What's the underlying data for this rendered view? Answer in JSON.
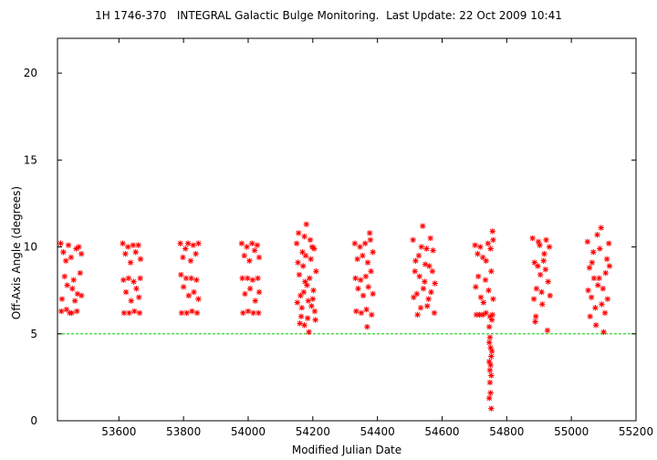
{
  "chart_data": {
    "type": "scatter",
    "title": "1H 1746-370   INTEGRAL Galactic Bulge Monitoring.  Last Update: 22 Oct 2009 10:41",
    "xlabel": "Modified Julian Date",
    "ylabel": "Off-Axis Angle (degrees)",
    "xlim": [
      53410,
      55200
    ],
    "ylim": [
      0,
      22
    ],
    "xticks": [
      53600,
      53800,
      54000,
      54200,
      54400,
      54600,
      54800,
      55000,
      55200
    ],
    "yticks": [
      0,
      5,
      10,
      15,
      20
    ],
    "grid": false,
    "marker": "asterisk",
    "marker_color": "#ff0000",
    "reference_line": {
      "y": 5,
      "style": "dashed",
      "color": "#00cc00"
    },
    "series": [
      {
        "points": [
          [
            53420,
            10.2
          ],
          [
            53428,
            9.7
          ],
          [
            53436,
            9.2
          ],
          [
            53444,
            10.1
          ],
          [
            53452,
            9.4
          ],
          [
            53460,
            8.1
          ],
          [
            53468,
            9.9
          ],
          [
            53476,
            10.0
          ],
          [
            53424,
            7.0
          ],
          [
            53432,
            8.3
          ],
          [
            53440,
            7.8
          ],
          [
            53448,
            6.2
          ],
          [
            53456,
            7.6
          ],
          [
            53464,
            6.9
          ],
          [
            53472,
            7.3
          ],
          [
            53480,
            8.5
          ],
          [
            53422,
            6.3
          ],
          [
            53438,
            6.4
          ],
          [
            53454,
            6.2
          ],
          [
            53470,
            6.3
          ],
          [
            53484,
            9.6
          ],
          [
            53484,
            7.2
          ],
          [
            53612,
            10.2
          ],
          [
            53620,
            9.6
          ],
          [
            53628,
            10.0
          ],
          [
            53636,
            9.1
          ],
          [
            53644,
            10.1
          ],
          [
            53652,
            9.7
          ],
          [
            53660,
            10.1
          ],
          [
            53667,
            9.3
          ],
          [
            53614,
            8.1
          ],
          [
            53622,
            7.4
          ],
          [
            53630,
            8.2
          ],
          [
            53638,
            6.9
          ],
          [
            53646,
            8.0
          ],
          [
            53654,
            7.6
          ],
          [
            53662,
            7.1
          ],
          [
            53666,
            8.2
          ],
          [
            53616,
            6.2
          ],
          [
            53632,
            6.2
          ],
          [
            53648,
            6.3
          ],
          [
            53664,
            6.2
          ],
          [
            53790,
            10.2
          ],
          [
            53798,
            9.4
          ],
          [
            53806,
            9.9
          ],
          [
            53814,
            10.2
          ],
          [
            53822,
            9.2
          ],
          [
            53830,
            10.1
          ],
          [
            53838,
            9.6
          ],
          [
            53846,
            10.2
          ],
          [
            53792,
            8.4
          ],
          [
            53800,
            7.7
          ],
          [
            53808,
            8.2
          ],
          [
            53816,
            7.2
          ],
          [
            53824,
            8.2
          ],
          [
            53832,
            7.4
          ],
          [
            53840,
            8.1
          ],
          [
            53846,
            7.0
          ],
          [
            53794,
            6.2
          ],
          [
            53810,
            6.2
          ],
          [
            53826,
            6.3
          ],
          [
            53842,
            6.2
          ],
          [
            53980,
            10.2
          ],
          [
            53988,
            9.5
          ],
          [
            53996,
            10.0
          ],
          [
            54004,
            9.2
          ],
          [
            54012,
            10.2
          ],
          [
            54020,
            9.8
          ],
          [
            54028,
            10.1
          ],
          [
            54034,
            9.4
          ],
          [
            53982,
            8.2
          ],
          [
            53990,
            7.3
          ],
          [
            53998,
            8.2
          ],
          [
            54006,
            7.6
          ],
          [
            54014,
            8.1
          ],
          [
            54022,
            6.9
          ],
          [
            54030,
            8.2
          ],
          [
            54034,
            7.4
          ],
          [
            53984,
            6.2
          ],
          [
            54000,
            6.3
          ],
          [
            54016,
            6.2
          ],
          [
            54032,
            6.2
          ],
          [
            54150,
            10.2
          ],
          [
            54154,
            9.1
          ],
          [
            54158,
            8.4
          ],
          [
            54162,
            7.2
          ],
          [
            54166,
            6.5
          ],
          [
            54170,
            8.9
          ],
          [
            54174,
            10.6
          ],
          [
            54178,
            9.5
          ],
          [
            54182,
            7.8
          ],
          [
            54186,
            6.9
          ],
          [
            54190,
            8.2
          ],
          [
            54194,
            9.3
          ],
          [
            54198,
            10.0
          ],
          [
            54202,
            7.5
          ],
          [
            54206,
            6.3
          ],
          [
            54210,
            8.6
          ],
          [
            54156,
            10.8
          ],
          [
            54164,
            6.0
          ],
          [
            54172,
            7.4
          ],
          [
            54180,
            11.3
          ],
          [
            54188,
            5.1
          ],
          [
            54196,
            6.6
          ],
          [
            54204,
            9.9
          ],
          [
            54160,
            5.6
          ],
          [
            54168,
            9.7
          ],
          [
            54176,
            8.0
          ],
          [
            54184,
            5.9
          ],
          [
            54192,
            10.4
          ],
          [
            54200,
            7.0
          ],
          [
            54208,
            5.8
          ],
          [
            54152,
            6.8
          ],
          [
            54174,
            5.5
          ],
          [
            54330,
            10.2
          ],
          [
            54338,
            9.3
          ],
          [
            54346,
            10.0
          ],
          [
            54354,
            9.5
          ],
          [
            54362,
            10.2
          ],
          [
            54370,
            9.1
          ],
          [
            54378,
            10.4
          ],
          [
            54386,
            9.7
          ],
          [
            54332,
            8.2
          ],
          [
            54340,
            7.6
          ],
          [
            54348,
            8.1
          ],
          [
            54356,
            7.2
          ],
          [
            54364,
            8.3
          ],
          [
            54372,
            7.7
          ],
          [
            54380,
            8.6
          ],
          [
            54386,
            7.3
          ],
          [
            54334,
            6.3
          ],
          [
            54350,
            6.2
          ],
          [
            54366,
            6.4
          ],
          [
            54382,
            6.1
          ],
          [
            54368,
            5.4
          ],
          [
            54376,
            10.8
          ],
          [
            54510,
            10.4
          ],
          [
            54516,
            8.6
          ],
          [
            54522,
            7.3
          ],
          [
            54528,
            9.5
          ],
          [
            54534,
            6.5
          ],
          [
            54540,
            11.2
          ],
          [
            54546,
            8.0
          ],
          [
            54552,
            9.9
          ],
          [
            54558,
            7.0
          ],
          [
            54564,
            10.5
          ],
          [
            54570,
            8.6
          ],
          [
            54576,
            6.2
          ],
          [
            54512,
            7.1
          ],
          [
            54518,
            9.2
          ],
          [
            54524,
            6.1
          ],
          [
            54530,
            8.3
          ],
          [
            54536,
            10.0
          ],
          [
            54542,
            7.6
          ],
          [
            54548,
            9.0
          ],
          [
            54554,
            6.6
          ],
          [
            54560,
            8.9
          ],
          [
            54566,
            7.4
          ],
          [
            54572,
            9.8
          ],
          [
            54578,
            7.9
          ],
          [
            54702,
            10.1
          ],
          [
            54710,
            9.6
          ],
          [
            54718,
            10.0
          ],
          [
            54726,
            9.4
          ],
          [
            54734,
            8.1
          ],
          [
            54742,
            10.2
          ],
          [
            54750,
            9.9
          ],
          [
            54758,
            10.4
          ],
          [
            54704,
            7.7
          ],
          [
            54712,
            8.3
          ],
          [
            54720,
            7.1
          ],
          [
            54728,
            6.8
          ],
          [
            54736,
            9.2
          ],
          [
            54744,
            7.5
          ],
          [
            54752,
            8.6
          ],
          [
            54758,
            7.0
          ],
          [
            54706,
            6.1
          ],
          [
            54716,
            6.1
          ],
          [
            54726,
            6.1
          ],
          [
            54736,
            6.2
          ],
          [
            54748,
            6.0
          ],
          [
            54756,
            6.1
          ],
          [
            54746,
            5.4
          ],
          [
            54748,
            4.8
          ],
          [
            54750,
            4.2
          ],
          [
            54752,
            3.7
          ],
          [
            54750,
            3.2
          ],
          [
            54748,
            2.9
          ],
          [
            54752,
            2.6
          ],
          [
            54746,
            4.5
          ],
          [
            54754,
            5.8
          ],
          [
            54750,
            1.6
          ],
          [
            54746,
            1.3
          ],
          [
            54752,
            0.7
          ],
          [
            54756,
            10.9
          ],
          [
            54748,
            2.2
          ],
          [
            54754,
            4.0
          ],
          [
            54746,
            3.4
          ],
          [
            54880,
            10.5
          ],
          [
            54886,
            9.1
          ],
          [
            54892,
            7.6
          ],
          [
            54898,
            10.3
          ],
          [
            54904,
            8.4
          ],
          [
            54910,
            6.7
          ],
          [
            54916,
            9.6
          ],
          [
            54922,
            10.4
          ],
          [
            54928,
            8.0
          ],
          [
            54934,
            7.2
          ],
          [
            54884,
            7.0
          ],
          [
            54890,
            6.0
          ],
          [
            54896,
            8.9
          ],
          [
            54902,
            10.1
          ],
          [
            54908,
            7.4
          ],
          [
            54914,
            9.2
          ],
          [
            54920,
            8.7
          ],
          [
            54926,
            5.2
          ],
          [
            54932,
            10.0
          ],
          [
            54888,
            5.7
          ],
          [
            55050,
            10.3
          ],
          [
            55056,
            8.8
          ],
          [
            55062,
            7.1
          ],
          [
            55068,
            9.7
          ],
          [
            55074,
            6.5
          ],
          [
            55080,
            10.7
          ],
          [
            55086,
            8.2
          ],
          [
            55092,
            11.1
          ],
          [
            55098,
            7.6
          ],
          [
            55104,
            6.2
          ],
          [
            55110,
            9.3
          ],
          [
            55116,
            10.2
          ],
          [
            55052,
            7.5
          ],
          [
            55058,
            6.0
          ],
          [
            55064,
            9.1
          ],
          [
            55070,
            8.2
          ],
          [
            55076,
            5.5
          ],
          [
            55082,
            7.8
          ],
          [
            55088,
            9.9
          ],
          [
            55094,
            6.7
          ],
          [
            55100,
            5.1
          ],
          [
            55106,
            8.5
          ],
          [
            55112,
            7.0
          ],
          [
            55118,
            8.9
          ]
        ]
      }
    ]
  }
}
